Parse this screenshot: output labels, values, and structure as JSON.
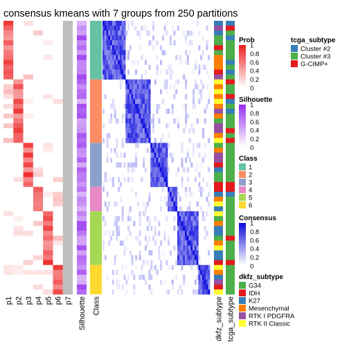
{
  "chart_data": {
    "type": "heatmap",
    "title": "consensus kmeans with 7 groups from 250 partitions",
    "row_groups": [
      {
        "class": "1",
        "n": 12
      },
      {
        "class": "2",
        "n": 13
      },
      {
        "class": "3",
        "n": 9
      },
      {
        "class": "4",
        "n": 5
      },
      {
        "class": "5",
        "n": 11
      },
      {
        "class": "6",
        "n": 6
      }
    ],
    "prob_columns": [
      "p1",
      "p2",
      "p3",
      "p4",
      "p5",
      "p6",
      "p7"
    ],
    "annotation_columns": [
      "Silhouette",
      "Class"
    ],
    "right_annotation_columns": [
      "dkfz_subtype",
      "tcga_subtype"
    ],
    "colors": {
      "prob": "#ee2222",
      "silhouette": "#9933ee",
      "consensus": "#1111dd",
      "p7": "#bebebe",
      "classes": {
        "1": "#66c2a5",
        "2": "#fc8d62",
        "3": "#8da0cb",
        "4": "#e78ac3",
        "5": "#a6d854",
        "6": "#ffd92f"
      },
      "tcga": {
        "Cluster #2": "#377eb8",
        "Cluster #3": "#4daf4a",
        "G-CIMP+": "#e41a1c"
      },
      "dkfz": {
        "G34": "#4daf4a",
        "IDH": "#e41a1c",
        "K27": "#377eb8",
        "Mesenchymal": "#ff7f00",
        "RTK I PDGFRA": "#984ea3",
        "RTK II Classic": "#ffff33"
      }
    },
    "legends": [
      {
        "title": "Prob",
        "ticks": [
          "1",
          "0.8",
          "0.6",
          "0.4",
          "0.2",
          "0"
        ]
      },
      {
        "title": "Silhouette",
        "ticks": [
          "1",
          "0.8",
          "0.6",
          "0.4",
          "0.2",
          "0"
        ]
      },
      {
        "title": "Class",
        "items": [
          "1",
          "2",
          "3",
          "4",
          "5",
          "6"
        ]
      },
      {
        "title": "Consensus",
        "ticks": [
          "1",
          "0.8",
          "0.6",
          "0.4",
          "0.2",
          "0"
        ]
      },
      {
        "title": "dkfz_subtype",
        "items": [
          "G34",
          "IDH",
          "K27",
          "Mesenchymal",
          "RTK I PDGFRA",
          "RTK II Classic"
        ]
      },
      {
        "title": "tcga_subtype",
        "items": [
          "Cluster #2",
          "Cluster #3",
          "G-CIMP+"
        ]
      }
    ]
  }
}
